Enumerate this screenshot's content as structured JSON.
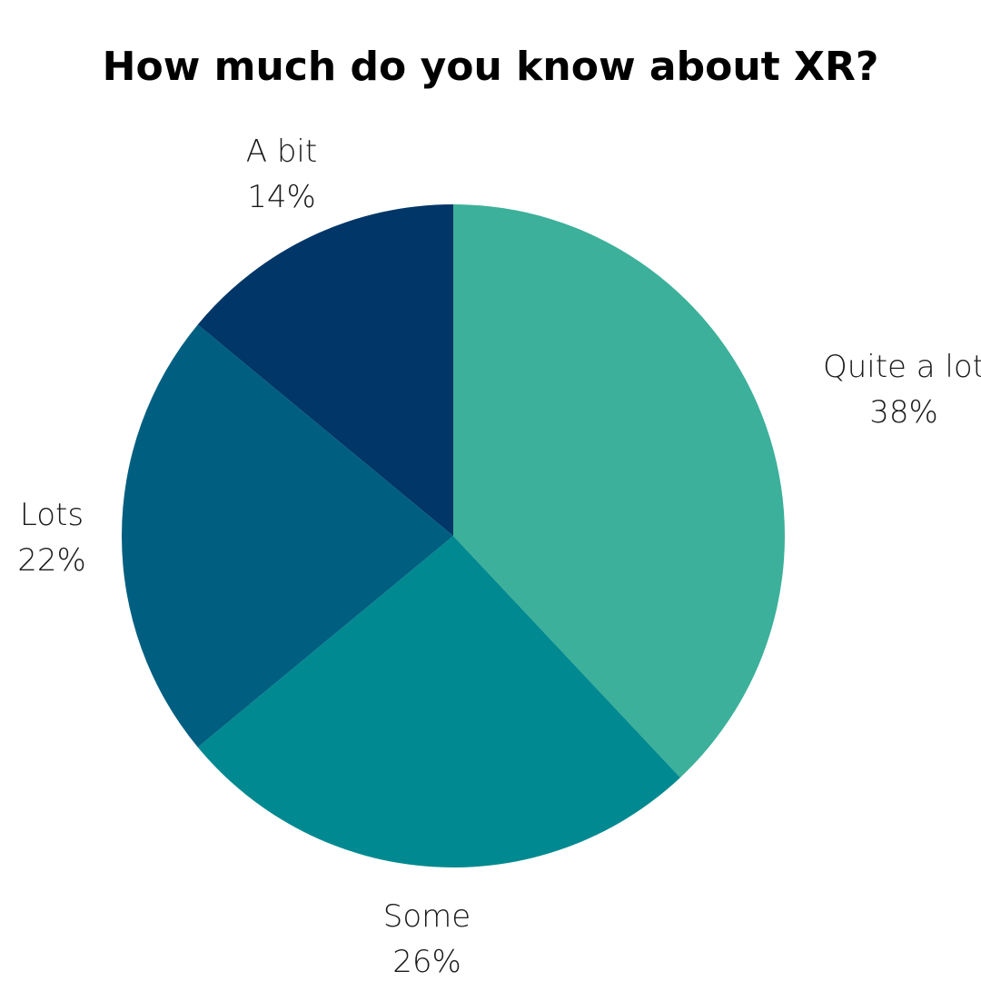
{
  "chart_data": {
    "type": "pie",
    "title": "How much do you know about XR?",
    "slices": [
      {
        "label": "Quite a lot",
        "value": 38,
        "display": "38%",
        "color": "#3cb09a"
      },
      {
        "label": "Some",
        "value": 26,
        "display": "26%",
        "color": "#008990"
      },
      {
        "label": "Lots",
        "value": 22,
        "display": "22%",
        "color": "#005f80"
      },
      {
        "label": "A bit",
        "value": 14,
        "display": "14%",
        "color": "#003668"
      }
    ],
    "start_angle": "12 o'clock",
    "direction": "clockwise",
    "legend": "none"
  }
}
